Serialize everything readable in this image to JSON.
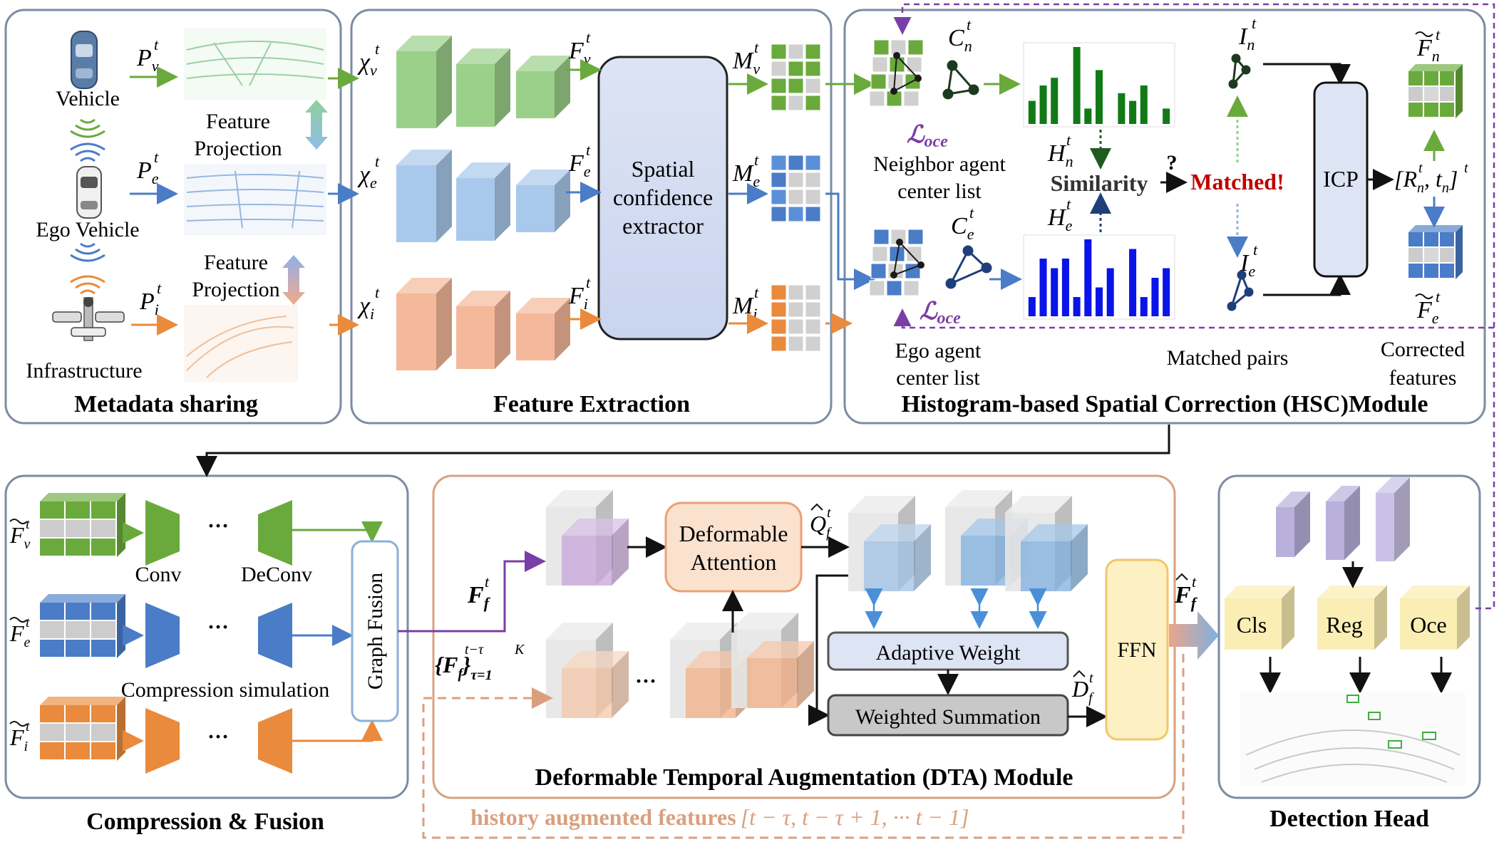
{
  "panels": {
    "metadata": "Metadata sharing",
    "feature": "Feature Extraction",
    "hsc": "Histogram-based Spatial Correction (HSC)Module",
    "compression": "Compression & Fusion",
    "dta": "Deformable Temporal Augmentation (DTA) Module",
    "detection": "Detection Head"
  },
  "agents": {
    "vehicle": "Vehicle",
    "ego": "Ego Vehicle",
    "infra": "Infrastructure",
    "proj1": [
      "Feature",
      "Projection"
    ],
    "proj2": [
      "Feature",
      "Projection"
    ]
  },
  "symbols": {
    "pv": "P",
    "pv_sup": "t",
    "pv_sub": "v",
    "pe": "P",
    "pe_sup": "t",
    "pe_sub": "e",
    "pi": "P",
    "pi_sup": "t",
    "pi_sub": "i",
    "xv": "χ",
    "xv_sup": "t",
    "xv_sub": "v",
    "xe": "χ",
    "xe_sup": "t",
    "xe_sub": "e",
    "xi": "χ",
    "xi_sup": "t",
    "xi_sub": "i",
    "fv": "F",
    "fv_sup": "t",
    "fv_sub": "v",
    "fe": "F",
    "fe_sup": "t",
    "fe_sub": "e",
    "fi": "F",
    "fi_sup": "t",
    "fi_sub": "i",
    "mv": "M",
    "mv_sup": "t",
    "mv_sub": "v",
    "me": "M",
    "me_sup": "t",
    "me_sub": "e",
    "mi": "M",
    "mi_sup": "t",
    "mi_sub": "i",
    "cn": "C",
    "cn_sup": "t",
    "cn_sub": "n",
    "ce": "C",
    "ce_sup": "t",
    "ce_sub": "e",
    "hn": "H",
    "hn_sup": "t",
    "hn_sub": "n",
    "he": "H",
    "he_sup": "t",
    "he_sub": "e",
    "in": "I",
    "in_sup": "t",
    "in_sub": "n",
    "ie": "I",
    "ie_sup": "t",
    "ie_sub": "e",
    "loce": "ℒ",
    "loce_sub": "oce",
    "fn_tilde": "F",
    "fn_tilde_sup": "t",
    "fn_tilde_sub": "n",
    "fe_tilde": "F",
    "fe_tilde_sup": "t",
    "fe_tilde_sub": "e",
    "rt": "[R",
    "rt_sup": "t",
    "rt_sub": "n",
    "rt_mid": ", t",
    "rt_sup2": "t",
    "rt_sub2": "n",
    "rt_end": "]",
    "cfv": "F",
    "cfv_sup": "t",
    "cfv_sub": "v",
    "cfe": "F",
    "cfe_sup": "t",
    "cfe_sub": "e",
    "cfi": "F",
    "cfi_sup": "t",
    "cfi_sub": "i",
    "fft": "F",
    "fft_sup": "t",
    "fft_sub": "f",
    "hist": "{F",
    "hist_sup": "t−τ",
    "hist_sub": "f",
    "hist_end": "}",
    "hist_sup2": "K",
    "hist_sub2": "τ=1",
    "qf": "Q",
    "qf_sup": "t",
    "qf_sub": "f",
    "df": "D",
    "df_sup": "t",
    "df_sub": "f",
    "ff": "F",
    "ff_sup": "t",
    "ff_sub": "f"
  },
  "labels": {
    "spatial": [
      "Spatial",
      "confidence",
      "extractor"
    ],
    "neighbor": [
      "Neighbor agent",
      "center list"
    ],
    "ego_list": [
      "Ego agent",
      "center list"
    ],
    "similarity": "Similarity",
    "question": "?",
    "matched": "Matched!",
    "matched_pairs": "Matched pairs",
    "icp": "ICP",
    "corrected": [
      "Corrected",
      "features"
    ],
    "conv": "Conv",
    "deconv": "DeConv",
    "ellipsis": "···",
    "compression_sim": "Compression simulation",
    "graph_fusion": "Graph Fusion",
    "deformable": [
      "Deformable",
      "Attention"
    ],
    "adaptive": "Adaptive Weight",
    "weighted": "Weighted Summation",
    "ffn": "FFN",
    "cls": "Cls",
    "reg": "Reg",
    "oce": "Oce",
    "history": "history augmented features",
    "history_range": "[t − τ, t − τ + 1, ··· t − 1]"
  },
  "histograms": {
    "neighbor": [
      3,
      5,
      6,
      0,
      10,
      2,
      7,
      0,
      4,
      3,
      5,
      0,
      2
    ],
    "ego": [
      2,
      6,
      5,
      6,
      2,
      8,
      3,
      5,
      0,
      7,
      2,
      4,
      5
    ]
  },
  "colors": {
    "green": "#6aaa3c",
    "blue": "#4a7cc7",
    "orange": "#e98a3c",
    "purple": "#7a3fa6",
    "hist_green": "#117a17",
    "hist_blue": "#0a14e8",
    "matched_red": "#c00000",
    "dashed_orange": "#d9a07f"
  }
}
